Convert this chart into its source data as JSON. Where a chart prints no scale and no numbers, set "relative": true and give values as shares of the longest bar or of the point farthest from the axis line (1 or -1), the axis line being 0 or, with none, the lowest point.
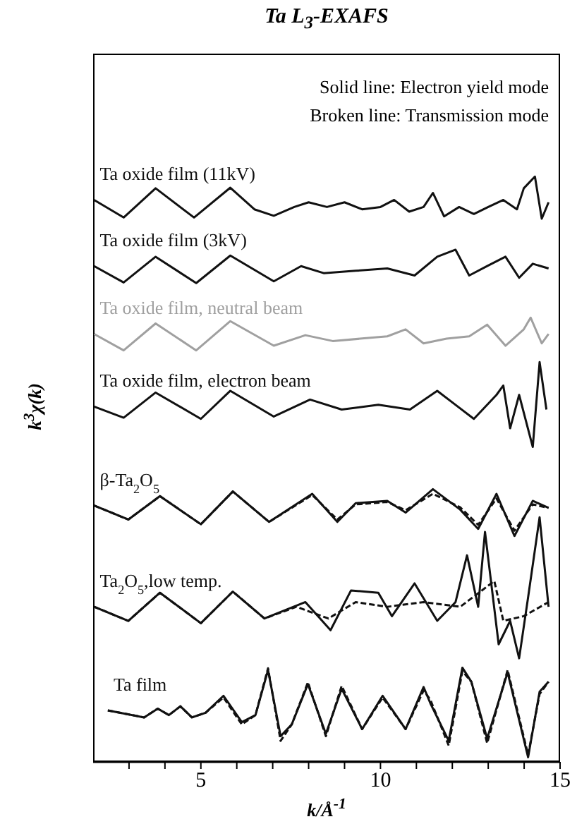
{
  "chart_data": {
    "type": "line",
    "title": "Ta L$_{3}$-EXAFS",
    "xlabel": "k/Å$^{-1}$",
    "ylabel": "k$^{3}$χ(k)",
    "relative": true,
    "annotations": [
      "Solid line: Electron yield mode",
      "Broken line: Transmission mode"
    ],
    "xlim": [
      2,
      15
    ],
    "xticks": [
      {
        "value": 3,
        "label": null
      },
      {
        "value": 4,
        "label": null
      },
      5,
      {
        "value": 6,
        "label": null
      },
      {
        "value": 7,
        "label": null
      },
      {
        "value": 8,
        "label": null
      },
      {
        "value": 9,
        "label": null
      },
      10,
      {
        "value": 11,
        "label": null
      },
      {
        "value": 12,
        "label": null
      },
      {
        "value": 13,
        "label": null
      },
      {
        "value": 14,
        "label": null
      },
      15
    ],
    "series": [
      {
        "name": "Ta oxide film (11kV)",
        "color": "#111111",
        "line_style": "solid",
        "x": [
          2.03,
          2.85,
          3.74,
          4.81,
          5.82,
          6.49,
          7.03,
          7.6,
          8.0,
          8.51,
          9.0,
          9.49,
          10.0,
          10.38,
          10.8,
          11.2,
          11.46,
          11.77,
          12.19,
          12.6,
          13.0,
          13.42,
          13.8,
          13.99,
          14.3,
          14.49,
          14.68
        ],
        "values": [
          0.96,
          0.93,
          0.98,
          0.93,
          0.981,
          0.944,
          0.933,
          0.948,
          0.956,
          0.948,
          0.956,
          0.944,
          0.948,
          0.96,
          0.94,
          0.948,
          0.972,
          0.932,
          0.948,
          0.936,
          0.948,
          0.96,
          0.944,
          0.98,
          1.0,
          0.928,
          0.956
        ]
      },
      {
        "name": "Ta oxide film (3kV)",
        "color": "#111111",
        "line_style": "solid",
        "x": [
          2.03,
          2.85,
          3.74,
          4.87,
          5.82,
          7.03,
          7.79,
          8.42,
          9.31,
          10.19,
          10.95,
          11.58,
          12.09,
          12.47,
          12.97,
          13.48,
          13.86,
          14.24,
          14.68
        ],
        "values": [
          0.847,
          0.819,
          0.863,
          0.818,
          0.865,
          0.821,
          0.847,
          0.835,
          0.839,
          0.843,
          0.831,
          0.863,
          0.875,
          0.831,
          0.847,
          0.863,
          0.827,
          0.851,
          0.843
        ]
      },
      {
        "name": "Ta oxide film, neutral beam",
        "color": "#a0a0a0",
        "line_style": "solid",
        "x": [
          2.03,
          2.85,
          3.74,
          4.87,
          5.82,
          7.03,
          7.91,
          8.67,
          9.43,
          10.19,
          10.7,
          11.2,
          11.84,
          12.47,
          12.97,
          13.48,
          13.99,
          14.18,
          14.49,
          14.68
        ],
        "values": [
          0.731,
          0.703,
          0.749,
          0.703,
          0.753,
          0.711,
          0.729,
          0.719,
          0.723,
          0.727,
          0.739,
          0.715,
          0.723,
          0.727,
          0.747,
          0.711,
          0.739,
          0.759,
          0.715,
          0.731
        ]
      },
      {
        "name": "Ta oxide film, electron beam",
        "color": "#111111",
        "line_style": "solid",
        "x": [
          2.03,
          2.85,
          3.74,
          5.0,
          5.82,
          7.03,
          8.04,
          8.92,
          9.94,
          10.82,
          11.58,
          12.09,
          12.6,
          13.23,
          13.42,
          13.61,
          13.86,
          14.24,
          14.43,
          14.62
        ],
        "values": [
          0.607,
          0.588,
          0.631,
          0.586,
          0.634,
          0.59,
          0.619,
          0.602,
          0.61,
          0.602,
          0.634,
          0.61,
          0.586,
          0.627,
          0.643,
          0.57,
          0.627,
          0.538,
          0.683,
          0.602
        ]
      },
      {
        "name": "β-Ta$_{2}$O$_{5}$",
        "color": "#111111",
        "line_style": "solid",
        "x": [
          2.03,
          2.98,
          3.86,
          5.0,
          5.89,
          6.9,
          8.1,
          8.8,
          9.31,
          10.19,
          10.7,
          11.46,
          12.22,
          12.72,
          13.23,
          13.73,
          14.24,
          14.68
        ],
        "values": [
          0.438,
          0.414,
          0.454,
          0.406,
          0.462,
          0.41,
          0.458,
          0.41,
          0.442,
          0.446,
          0.426,
          0.466,
          0.431,
          0.398,
          0.458,
          0.386,
          0.446,
          0.434
        ]
      },
      {
        "color": "#111111",
        "line_style": "dashed",
        "x": [
          2.03,
          2.98,
          3.86,
          5.0,
          5.89,
          6.9,
          8.1,
          8.8,
          9.31,
          10.19,
          10.7,
          11.46,
          12.22,
          12.72,
          13.23,
          13.73,
          14.24,
          14.68
        ],
        "values": [
          0.438,
          0.414,
          0.454,
          0.406,
          0.462,
          0.41,
          0.456,
          0.414,
          0.44,
          0.444,
          0.43,
          0.458,
          0.435,
          0.405,
          0.45,
          0.395,
          0.44,
          0.434
        ]
      },
      {
        "name": "Ta$_{2}$O$_{5}$,low temp.",
        "color": "#111111",
        "line_style": "solid",
        "x": [
          2.03,
          2.98,
          3.86,
          5.0,
          5.89,
          6.77,
          7.91,
          8.61,
          9.18,
          9.94,
          10.32,
          10.95,
          11.58,
          12.09,
          12.41,
          12.72,
          12.91,
          13.29,
          13.61,
          13.86,
          14.11,
          14.43,
          14.68
        ],
        "values": [
          0.265,
          0.241,
          0.289,
          0.237,
          0.291,
          0.245,
          0.273,
          0.225,
          0.293,
          0.289,
          0.249,
          0.305,
          0.241,
          0.273,
          0.353,
          0.265,
          0.393,
          0.201,
          0.241,
          0.177,
          0.281,
          0.418,
          0.265
        ]
      },
      {
        "color": "#111111",
        "line_style": "dashed",
        "x": [
          2.03,
          2.98,
          3.86,
          5.0,
          5.89,
          6.77,
          7.66,
          8.55,
          9.31,
          10.19,
          11.2,
          12.22,
          13.17,
          13.42,
          13.99,
          14.68
        ],
        "values": [
          0.265,
          0.241,
          0.289,
          0.237,
          0.291,
          0.245,
          0.265,
          0.245,
          0.273,
          0.265,
          0.273,
          0.265,
          0.309,
          0.241,
          0.249,
          0.273
        ]
      },
      {
        "name": "Ta film",
        "color": "#111111",
        "line_style": "solid",
        "x": [
          2.41,
          3.42,
          3.8,
          4.11,
          4.43,
          4.75,
          5.13,
          5.63,
          6.14,
          6.52,
          6.87,
          7.22,
          7.53,
          7.98,
          8.48,
          8.92,
          9.49,
          10.06,
          10.7,
          11.2,
          11.39,
          11.9,
          12.28,
          12.53,
          12.97,
          13.54,
          14.11,
          14.43,
          14.68
        ],
        "values": [
          0.088,
          0.076,
          0.091,
          0.08,
          0.095,
          0.076,
          0.084,
          0.113,
          0.068,
          0.08,
          0.157,
          0.044,
          0.064,
          0.133,
          0.048,
          0.125,
          0.056,
          0.113,
          0.056,
          0.128,
          0.1,
          0.036,
          0.161,
          0.137,
          0.04,
          0.153,
          0.008,
          0.12,
          0.137
        ]
      },
      {
        "color": "#111111",
        "line_style": "dashed",
        "x": [
          2.41,
          3.42,
          3.8,
          4.11,
          4.43,
          4.75,
          5.13,
          5.63,
          6.14,
          6.52,
          6.87,
          7.22,
          7.53,
          7.98,
          8.48,
          8.92,
          9.49,
          10.06,
          10.7,
          11.2,
          11.39,
          11.9,
          12.28,
          12.53,
          12.97,
          13.54,
          14.11,
          14.43,
          14.68
        ],
        "values": [
          0.088,
          0.076,
          0.091,
          0.08,
          0.095,
          0.076,
          0.084,
          0.11,
          0.064,
          0.08,
          0.16,
          0.036,
          0.064,
          0.136,
          0.044,
          0.13,
          0.056,
          0.11,
          0.056,
          0.122,
          0.106,
          0.028,
          0.155,
          0.137,
          0.032,
          0.157,
          0.012,
          0.116,
          0.137
        ]
      }
    ]
  }
}
